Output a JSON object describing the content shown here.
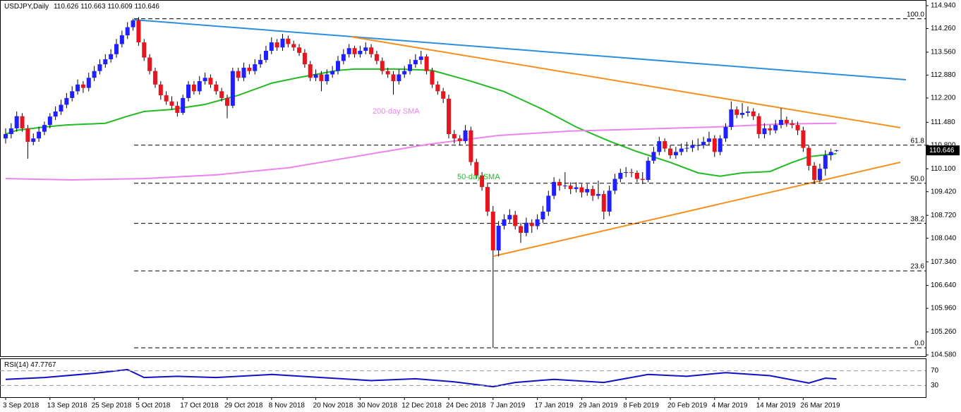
{
  "chart_data": {
    "type": "candlestick",
    "title": "USDJPY,Daily",
    "categories": [
      "3 Sep 2018",
      null,
      null,
      null,
      null,
      null,
      null,
      null,
      "13 Sep 2018",
      null,
      null,
      null,
      null,
      null,
      null,
      null,
      "25 Sep 2018",
      null,
      null,
      null,
      null,
      null,
      null,
      null,
      "5 Oct 2018",
      null,
      null,
      null,
      null,
      null,
      null,
      null,
      "17 Oct 2018",
      null,
      null,
      null,
      null,
      null,
      null,
      null,
      "29 Oct 2018",
      null,
      null,
      null,
      null,
      null,
      null,
      null,
      "8 Nov 2018",
      null,
      null,
      null,
      null,
      null,
      null,
      null,
      "20 Nov 2018",
      null,
      null,
      null,
      null,
      null,
      null,
      null,
      "30 Nov 2018",
      null,
      null,
      null,
      null,
      null,
      null,
      null,
      "12 Dec 2018",
      null,
      null,
      null,
      null,
      null,
      null,
      null,
      "24 Dec 2018",
      null,
      null,
      null,
      null,
      null,
      null,
      null,
      "7 Jan 2019",
      null,
      null,
      null,
      null,
      null,
      null,
      null,
      "17 Jan 2019",
      null,
      null,
      null,
      null,
      null,
      null,
      null,
      "29 Jan 2019",
      null,
      null,
      null,
      null,
      null,
      null,
      null,
      "8 Feb 2019",
      null,
      null,
      null,
      null,
      null,
      null,
      null,
      "20 Feb 2019",
      null,
      null,
      null,
      null,
      null,
      null,
      null,
      "4 Mar 2019",
      null,
      null,
      null,
      null,
      null,
      null,
      null,
      "14 Mar 2019",
      null,
      null,
      null,
      null,
      null,
      null,
      null,
      "26 Mar 2019",
      null,
      null,
      null,
      null,
      null,
      null
    ],
    "ohlc": [
      [
        111.0,
        111.3,
        110.85,
        111.13
      ],
      [
        111.13,
        111.45,
        111.0,
        111.3
      ],
      [
        111.3,
        111.8,
        111.2,
        111.66
      ],
      [
        111.66,
        111.75,
        111.2,
        111.3
      ],
      [
        111.3,
        111.4,
        110.4,
        110.9
      ],
      [
        110.9,
        111.15,
        110.8,
        111.0
      ],
      [
        111.0,
        111.35,
        110.9,
        111.2
      ],
      [
        111.2,
        111.5,
        111.1,
        111.4
      ],
      [
        111.4,
        111.75,
        111.3,
        111.65
      ],
      [
        111.65,
        111.95,
        111.55,
        111.8
      ],
      [
        111.8,
        112.15,
        111.7,
        112.0
      ],
      [
        112.0,
        112.35,
        111.9,
        112.2
      ],
      [
        112.2,
        112.55,
        112.1,
        112.4
      ],
      [
        112.4,
        112.75,
        112.3,
        112.6
      ],
      [
        112.6,
        112.7,
        112.35,
        112.5
      ],
      [
        112.5,
        112.95,
        112.4,
        112.8
      ],
      [
        112.8,
        113.15,
        112.7,
        113.0
      ],
      [
        113.0,
        113.35,
        112.9,
        113.2
      ],
      [
        113.2,
        113.5,
        113.1,
        113.35
      ],
      [
        113.35,
        113.65,
        113.25,
        113.5
      ],
      [
        113.5,
        113.95,
        113.4,
        113.8
      ],
      [
        113.8,
        114.2,
        113.7,
        114.06
      ],
      [
        114.06,
        114.45,
        113.95,
        114.3
      ],
      [
        114.3,
        114.55,
        114.2,
        114.5
      ],
      [
        114.5,
        114.6,
        113.75,
        113.85
      ],
      [
        113.85,
        113.95,
        113.3,
        113.4
      ],
      [
        113.4,
        113.5,
        112.9,
        113.0
      ],
      [
        113.0,
        113.1,
        112.5,
        112.6
      ],
      [
        112.6,
        112.7,
        112.15,
        112.28
      ],
      [
        112.28,
        112.4,
        112.0,
        112.1
      ],
      [
        112.1,
        112.25,
        111.85,
        111.97
      ],
      [
        111.97,
        112.1,
        111.65,
        111.76
      ],
      [
        111.76,
        112.3,
        111.7,
        112.2
      ],
      [
        112.2,
        112.7,
        112.1,
        112.6
      ],
      [
        112.6,
        112.7,
        112.3,
        112.4
      ],
      [
        112.4,
        112.85,
        112.3,
        112.7
      ],
      [
        112.7,
        112.95,
        112.6,
        112.8
      ],
      [
        112.8,
        112.9,
        112.5,
        112.6
      ],
      [
        112.6,
        112.7,
        112.3,
        112.4
      ],
      [
        112.4,
        112.5,
        112.1,
        112.2
      ],
      [
        112.2,
        112.3,
        111.6,
        111.97
      ],
      [
        111.97,
        113.1,
        111.9,
        113.0
      ],
      [
        113.0,
        113.1,
        112.7,
        112.8
      ],
      [
        112.8,
        113.25,
        112.7,
        113.1
      ],
      [
        113.1,
        113.2,
        112.9,
        113.0
      ],
      [
        113.0,
        113.35,
        112.9,
        113.2
      ],
      [
        113.2,
        113.5,
        113.1,
        113.33
      ],
      [
        113.33,
        113.75,
        113.25,
        113.6
      ],
      [
        113.6,
        114.0,
        113.5,
        113.85
      ],
      [
        113.85,
        113.95,
        113.6,
        113.7
      ],
      [
        113.7,
        114.1,
        113.6,
        113.96
      ],
      [
        113.96,
        114.05,
        113.7,
        113.8
      ],
      [
        113.8,
        113.9,
        113.6,
        113.7
      ],
      [
        113.7,
        113.8,
        113.45,
        113.54
      ],
      [
        113.54,
        113.65,
        113.1,
        113.2
      ],
      [
        113.2,
        113.3,
        112.7,
        112.8
      ],
      [
        112.8,
        113.05,
        112.7,
        112.9
      ],
      [
        112.9,
        113.0,
        112.4,
        112.7
      ],
      [
        112.7,
        113.05,
        112.6,
        112.9
      ],
      [
        112.9,
        113.15,
        112.8,
        113.0
      ],
      [
        113.0,
        113.45,
        112.9,
        113.3
      ],
      [
        113.3,
        113.65,
        113.2,
        113.5
      ],
      [
        113.5,
        113.8,
        113.4,
        113.68
      ],
      [
        113.68,
        113.75,
        113.4,
        113.5
      ],
      [
        113.5,
        113.75,
        113.4,
        113.6
      ],
      [
        113.6,
        113.85,
        113.5,
        113.7
      ],
      [
        113.7,
        113.8,
        113.4,
        113.5
      ],
      [
        113.5,
        113.6,
        113.2,
        113.3
      ],
      [
        113.3,
        113.4,
        112.9,
        113.0
      ],
      [
        113.0,
        113.1,
        112.8,
        112.9
      ],
      [
        112.9,
        113.0,
        112.3,
        112.7
      ],
      [
        112.7,
        113.05,
        112.6,
        112.9
      ],
      [
        112.9,
        113.15,
        112.8,
        113.0
      ],
      [
        113.0,
        113.35,
        112.9,
        113.2
      ],
      [
        113.2,
        113.5,
        113.1,
        113.33
      ],
      [
        113.33,
        113.6,
        113.2,
        113.43
      ],
      [
        113.43,
        113.5,
        112.9,
        113.0
      ],
      [
        113.0,
        113.1,
        112.5,
        112.6
      ],
      [
        112.6,
        112.7,
        112.3,
        112.4
      ],
      [
        112.4,
        112.5,
        112.05,
        112.18
      ],
      [
        112.18,
        112.3,
        111.0,
        111.13
      ],
      [
        111.13,
        111.25,
        110.85,
        111.0
      ],
      [
        111.0,
        111.1,
        110.8,
        110.92
      ],
      [
        110.92,
        111.4,
        110.85,
        111.24
      ],
      [
        111.24,
        111.35,
        110.2,
        110.3
      ],
      [
        110.3,
        110.4,
        109.8,
        109.9
      ],
      [
        109.9,
        110.0,
        109.45,
        109.56
      ],
      [
        109.56,
        109.65,
        108.7,
        108.83
      ],
      [
        108.83,
        109.0,
        104.79,
        107.68
      ],
      [
        107.68,
        108.55,
        107.5,
        108.41
      ],
      [
        108.41,
        108.75,
        108.3,
        108.6
      ],
      [
        108.6,
        108.9,
        108.5,
        108.73
      ],
      [
        108.73,
        108.85,
        108.3,
        108.4
      ],
      [
        108.4,
        108.5,
        107.9,
        108.2
      ],
      [
        108.2,
        108.65,
        108.1,
        108.5
      ],
      [
        108.5,
        108.6,
        108.2,
        108.4
      ],
      [
        108.4,
        108.75,
        108.3,
        108.6
      ],
      [
        108.6,
        109.0,
        108.5,
        108.83
      ],
      [
        108.83,
        109.45,
        108.7,
        109.3
      ],
      [
        109.3,
        109.85,
        109.2,
        109.71
      ],
      [
        109.71,
        109.8,
        109.45,
        109.6
      ],
      [
        109.6,
        110.0,
        109.5,
        109.6
      ],
      [
        109.6,
        109.7,
        109.35,
        109.5
      ],
      [
        109.5,
        109.7,
        109.4,
        109.55
      ],
      [
        109.55,
        109.65,
        109.25,
        109.4
      ],
      [
        109.4,
        109.65,
        109.3,
        109.5
      ],
      [
        109.5,
        109.6,
        109.15,
        109.3
      ],
      [
        109.3,
        109.75,
        109.2,
        109.35
      ],
      [
        109.35,
        109.45,
        108.6,
        108.83
      ],
      [
        108.83,
        109.6,
        108.7,
        109.45
      ],
      [
        109.45,
        109.95,
        109.35,
        109.8
      ],
      [
        109.8,
        110.1,
        109.7,
        109.98
      ],
      [
        109.98,
        110.15,
        109.85,
        110.0
      ],
      [
        110.0,
        110.1,
        109.85,
        109.98
      ],
      [
        109.98,
        110.05,
        109.7,
        109.8
      ],
      [
        109.8,
        110.0,
        109.65,
        109.77
      ],
      [
        109.77,
        110.45,
        109.7,
        110.34
      ],
      [
        110.34,
        110.75,
        110.25,
        110.6
      ],
      [
        110.6,
        111.05,
        110.5,
        110.92
      ],
      [
        110.92,
        111.0,
        110.6,
        110.7
      ],
      [
        110.7,
        110.8,
        110.4,
        110.5
      ],
      [
        110.5,
        110.75,
        110.4,
        110.6
      ],
      [
        110.6,
        110.85,
        110.5,
        110.7
      ],
      [
        110.7,
        110.9,
        110.6,
        110.72
      ],
      [
        110.72,
        110.95,
        110.6,
        110.8
      ],
      [
        110.8,
        111.0,
        110.65,
        110.8
      ],
      [
        110.8,
        111.05,
        110.7,
        110.9
      ],
      [
        110.9,
        111.2,
        110.8,
        111.0
      ],
      [
        111.0,
        111.1,
        110.45,
        110.6
      ],
      [
        110.6,
        111.1,
        110.5,
        111.0
      ],
      [
        111.0,
        111.45,
        110.9,
        111.34
      ],
      [
        111.34,
        112.1,
        111.25,
        111.86
      ],
      [
        111.86,
        111.95,
        111.6,
        111.7
      ],
      [
        111.7,
        112.05,
        111.6,
        111.76
      ],
      [
        111.76,
        111.95,
        111.65,
        111.8
      ],
      [
        111.8,
        111.9,
        111.55,
        111.66
      ],
      [
        111.66,
        111.75,
        111.0,
        111.13
      ],
      [
        111.13,
        111.45,
        111.0,
        111.3
      ],
      [
        111.3,
        111.4,
        111.1,
        111.24
      ],
      [
        111.24,
        111.55,
        111.15,
        111.4
      ],
      [
        111.4,
        111.9,
        111.3,
        111.55
      ],
      [
        111.55,
        111.65,
        111.35,
        111.45
      ],
      [
        111.45,
        111.55,
        111.3,
        111.4
      ],
      [
        111.4,
        111.5,
        111.1,
        111.24
      ],
      [
        111.24,
        111.35,
        110.6,
        110.72
      ],
      [
        110.72,
        110.8,
        110.05,
        110.19
      ],
      [
        110.19,
        110.3,
        109.65,
        109.77
      ],
      [
        109.77,
        110.25,
        109.7,
        110.1
      ],
      [
        110.1,
        110.65,
        109.9,
        110.5
      ],
      [
        110.5,
        110.7,
        110.35,
        110.6
      ],
      [
        110.626,
        110.663,
        110.609,
        110.646
      ]
    ],
    "up_color": "#1f1fff",
    "down_color": "#e8141e",
    "ylim": [
      104.58,
      114.94
    ],
    "yticks": [
      {
        "value": 114.94,
        "label": "114.940"
      },
      {
        "value": 114.26,
        "label": "114.260"
      },
      {
        "value": 113.56,
        "label": "113.560"
      },
      {
        "value": 112.88,
        "label": "112.880"
      },
      {
        "value": 112.2,
        "label": "112.200"
      },
      {
        "value": 111.48,
        "label": "111.480"
      },
      {
        "value": 110.8,
        "label": "110.800"
      },
      {
        "value": 110.1,
        "label": "110.100"
      },
      {
        "value": 109.42,
        "label": "109.420"
      },
      {
        "value": 108.72,
        "label": "108.720"
      },
      {
        "value": 108.04,
        "label": "108.040"
      },
      {
        "value": 107.34,
        "label": "107.340"
      },
      {
        "value": 106.64,
        "label": "106.640"
      },
      {
        "value": 105.96,
        "label": "105.960"
      },
      {
        "value": 105.26,
        "label": "105.260"
      },
      {
        "value": 104.58,
        "label": "104.580"
      }
    ],
    "series": [
      {
        "name": "50-day SMA",
        "color": "#22bb22",
        "x": [
          0,
          2,
          7,
          11,
          18,
          22,
          25,
          30,
          36,
          42,
          48,
          53,
          60,
          63,
          71,
          77,
          84,
          90,
          97,
          103,
          109,
          114,
          120,
          125,
          129,
          133,
          138,
          142,
          145,
          150
        ],
        "values": [
          111.13,
          111.24,
          111.34,
          111.4,
          111.45,
          111.66,
          111.8,
          111.86,
          112.01,
          112.28,
          112.64,
          112.81,
          113.02,
          113.06,
          113.06,
          113.02,
          112.7,
          112.39,
          111.86,
          111.34,
          110.92,
          110.61,
          110.29,
          109.98,
          109.88,
          109.98,
          110.02,
          110.29,
          110.46,
          110.55
        ]
      },
      {
        "name": "200-day SMA",
        "color": "#ee82ee",
        "x": [
          0,
          12,
          25,
          38,
          51,
          63,
          76,
          89,
          102,
          115,
          128,
          140,
          150
        ],
        "values": [
          109.81,
          109.77,
          109.81,
          109.92,
          110.13,
          110.46,
          110.82,
          111.09,
          111.22,
          111.28,
          111.34,
          111.43,
          111.45
        ]
      }
    ],
    "fibonacci": {
      "levels": [
        100,
        61.8,
        50,
        38.2,
        23.6,
        0
      ],
      "value_labels": [
        "100.0",
        "61.8",
        "50.0",
        "38.2",
        "23.6",
        "0.0"
      ],
      "prices": [
        114.55,
        110.8,
        109.67,
        108.48,
        107.07,
        104.79
      ]
    },
    "rsi": {
      "title": "RSI(14)",
      "color": "#1010c8",
      "ylim": [
        0,
        100
      ],
      "yticks": [
        70,
        30
      ],
      "x": [
        0,
        7,
        16,
        22,
        25,
        31,
        38,
        48,
        57,
        66,
        74,
        81,
        88,
        92,
        99,
        108,
        116,
        123,
        130,
        138,
        145,
        148,
        150
      ],
      "values": [
        46.7,
        51.7,
        63.3,
        73.3,
        51.7,
        55,
        51.7,
        60,
        51.7,
        43.3,
        48.3,
        40,
        26.7,
        38.3,
        46.7,
        38.3,
        60,
        55,
        65,
        56.7,
        36.7,
        50,
        47.7767
      ]
    }
  }
}
